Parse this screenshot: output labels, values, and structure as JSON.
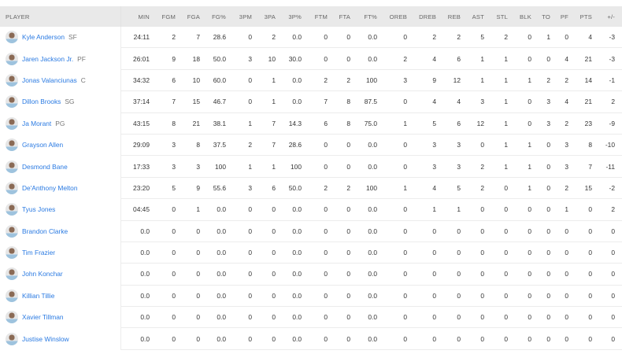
{
  "columns": [
    "PLAYER",
    "MIN",
    "FGM",
    "FGA",
    "FG%",
    "3PM",
    "3PA",
    "3P%",
    "FTM",
    "FTA",
    "FT%",
    "OREB",
    "DREB",
    "REB",
    "AST",
    "STL",
    "BLK",
    "TO",
    "PF",
    "PTS",
    "+/-"
  ],
  "colors": {
    "link": "#2a7ae2",
    "header_bg": "#e9e9e9"
  },
  "rows": [
    {
      "name": "Kyle Anderson",
      "pos": "SF",
      "stats": [
        "24:11",
        "2",
        "7",
        "28.6",
        "0",
        "2",
        "0.0",
        "0",
        "0",
        "0.0",
        "0",
        "2",
        "2",
        "5",
        "2",
        "0",
        "1",
        "0",
        "4",
        "-3"
      ]
    },
    {
      "name": "Jaren Jackson Jr.",
      "pos": "PF",
      "stats": [
        "26:01",
        "9",
        "18",
        "50.0",
        "3",
        "10",
        "30.0",
        "0",
        "0",
        "0.0",
        "2",
        "4",
        "6",
        "1",
        "1",
        "0",
        "0",
        "4",
        "21",
        "-3"
      ]
    },
    {
      "name": "Jonas Valanciunas",
      "pos": "C",
      "stats": [
        "34:32",
        "6",
        "10",
        "60.0",
        "0",
        "1",
        "0.0",
        "2",
        "2",
        "100",
        "3",
        "9",
        "12",
        "1",
        "1",
        "1",
        "2",
        "2",
        "14",
        "-1"
      ]
    },
    {
      "name": "Dillon Brooks",
      "pos": "SG",
      "stats": [
        "37:14",
        "7",
        "15",
        "46.7",
        "0",
        "1",
        "0.0",
        "7",
        "8",
        "87.5",
        "0",
        "4",
        "4",
        "3",
        "1",
        "0",
        "3",
        "4",
        "21",
        "2"
      ]
    },
    {
      "name": "Ja Morant",
      "pos": "PG",
      "stats": [
        "43:15",
        "8",
        "21",
        "38.1",
        "1",
        "7",
        "14.3",
        "6",
        "8",
        "75.0",
        "1",
        "5",
        "6",
        "12",
        "1",
        "0",
        "3",
        "2",
        "23",
        "-9"
      ]
    },
    {
      "name": "Grayson Allen",
      "pos": "",
      "stats": [
        "29:09",
        "3",
        "8",
        "37.5",
        "2",
        "7",
        "28.6",
        "0",
        "0",
        "0.0",
        "0",
        "3",
        "3",
        "0",
        "1",
        "1",
        "0",
        "3",
        "8",
        "-10"
      ]
    },
    {
      "name": "Desmond Bane",
      "pos": "",
      "stats": [
        "17:33",
        "3",
        "3",
        "100",
        "1",
        "1",
        "100",
        "0",
        "0",
        "0.0",
        "0",
        "3",
        "3",
        "2",
        "1",
        "1",
        "0",
        "3",
        "7",
        "-11"
      ]
    },
    {
      "name": "De'Anthony Melton",
      "pos": "",
      "stats": [
        "23:20",
        "5",
        "9",
        "55.6",
        "3",
        "6",
        "50.0",
        "2",
        "2",
        "100",
        "1",
        "4",
        "5",
        "2",
        "0",
        "1",
        "0",
        "2",
        "15",
        "-2"
      ]
    },
    {
      "name": "Tyus Jones",
      "pos": "",
      "stats": [
        "04:45",
        "0",
        "1",
        "0.0",
        "0",
        "0",
        "0.0",
        "0",
        "0",
        "0.0",
        "0",
        "1",
        "1",
        "0",
        "0",
        "0",
        "0",
        "1",
        "0",
        "2"
      ]
    },
    {
      "name": "Brandon Clarke",
      "pos": "",
      "stats": [
        "0.0",
        "0",
        "0",
        "0.0",
        "0",
        "0",
        "0.0",
        "0",
        "0",
        "0.0",
        "0",
        "0",
        "0",
        "0",
        "0",
        "0",
        "0",
        "0",
        "0",
        "0"
      ]
    },
    {
      "name": "Tim Frazier",
      "pos": "",
      "stats": [
        "0.0",
        "0",
        "0",
        "0.0",
        "0",
        "0",
        "0.0",
        "0",
        "0",
        "0.0",
        "0",
        "0",
        "0",
        "0",
        "0",
        "0",
        "0",
        "0",
        "0",
        "0"
      ]
    },
    {
      "name": "John Konchar",
      "pos": "",
      "stats": [
        "0.0",
        "0",
        "0",
        "0.0",
        "0",
        "0",
        "0.0",
        "0",
        "0",
        "0.0",
        "0",
        "0",
        "0",
        "0",
        "0",
        "0",
        "0",
        "0",
        "0",
        "0"
      ]
    },
    {
      "name": "Killian Tillie",
      "pos": "",
      "stats": [
        "0.0",
        "0",
        "0",
        "0.0",
        "0",
        "0",
        "0.0",
        "0",
        "0",
        "0.0",
        "0",
        "0",
        "0",
        "0",
        "0",
        "0",
        "0",
        "0",
        "0",
        "0"
      ]
    },
    {
      "name": "Xavier Tillman",
      "pos": "",
      "stats": [
        "0.0",
        "0",
        "0",
        "0.0",
        "0",
        "0",
        "0.0",
        "0",
        "0",
        "0.0",
        "0",
        "0",
        "0",
        "0",
        "0",
        "0",
        "0",
        "0",
        "0",
        "0"
      ]
    },
    {
      "name": "Justise Winslow",
      "pos": "",
      "stats": [
        "0.0",
        "0",
        "0",
        "0.0",
        "0",
        "0",
        "0.0",
        "0",
        "0",
        "0.0",
        "0",
        "0",
        "0",
        "0",
        "0",
        "0",
        "0",
        "0",
        "0",
        "0"
      ]
    }
  ]
}
